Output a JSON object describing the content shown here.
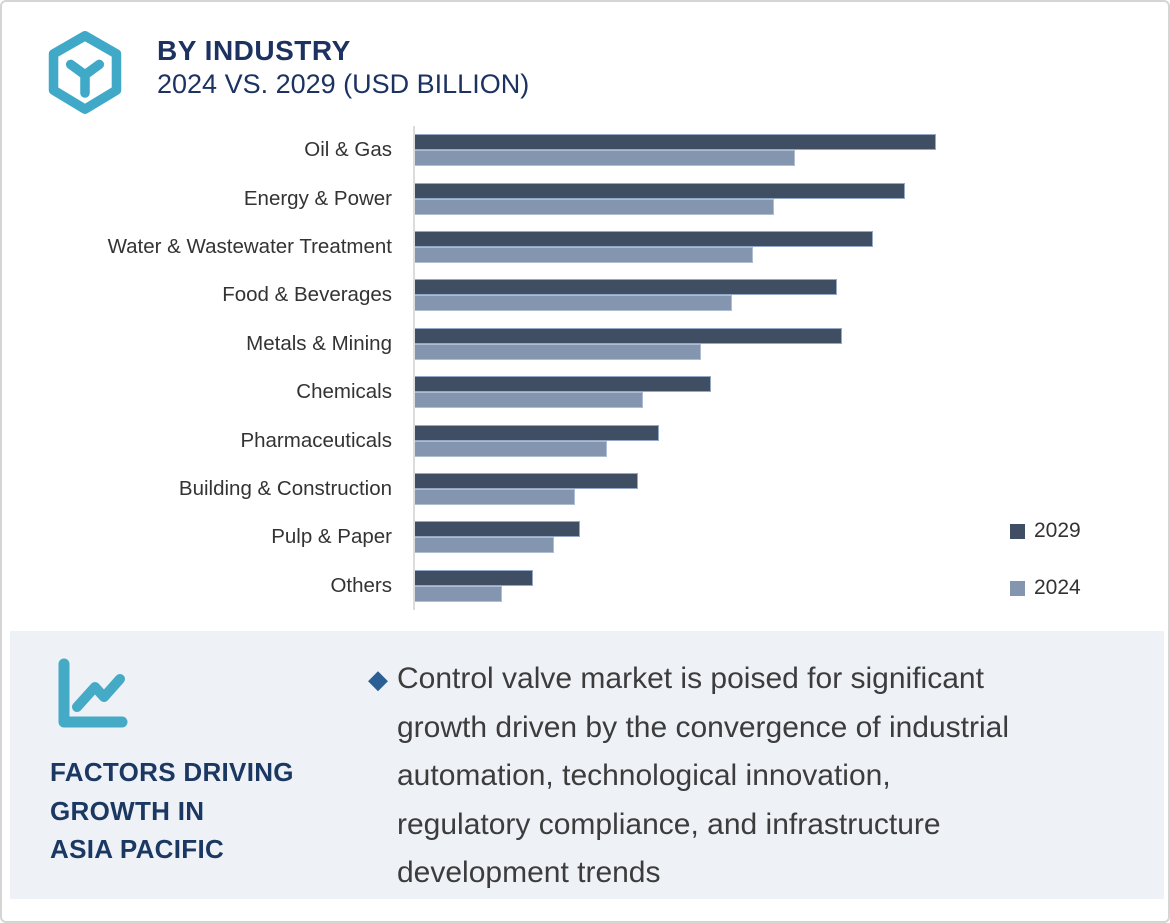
{
  "header": {
    "title": "BY INDUSTRY",
    "subtitle": "2024 VS. 2029 (USD BILLION)",
    "logo_icon": "hexagon-y-logo",
    "logo_color": "#3fa9c7",
    "title_color": "#1c3261"
  },
  "chart_data": {
    "type": "bar",
    "orientation": "horizontal",
    "title": "BY INDUSTRY 2024 VS. 2029 (USD BILLION)",
    "units": "USD Billion",
    "value_axis_labels_shown": false,
    "values_are_relative_estimates_max_100": true,
    "grid": false,
    "legend_position": "right",
    "categories": [
      "Oil & Gas",
      "Energy & Power",
      "Water & Wastewater Treatment",
      "Food & Beverages",
      "Metals & Mining",
      "Chemicals",
      "Pharmaceuticals",
      "Building & Construction",
      "Pulp & Paper",
      "Others"
    ],
    "series": [
      {
        "name": "2029",
        "color": "#3f4e63",
        "values": [
          100,
          94,
          88,
          81,
          82,
          57,
          47,
          43,
          32,
          23
        ]
      },
      {
        "name": "2024",
        "color": "#8496af",
        "values": [
          73,
          69,
          65,
          61,
          55,
          44,
          37,
          31,
          27,
          17
        ]
      }
    ]
  },
  "factors_panel": {
    "icon": "trend-chart-icon",
    "icon_color": "#45aac6",
    "background_color": "#eef1f6",
    "heading_lines": [
      "FACTORS DRIVING",
      "GROWTH IN",
      "ASIA PACIFIC"
    ],
    "bullet": {
      "marker": "◆",
      "marker_color": "#2b5f93",
      "lines": [
        "Control valve market is poised for significant",
        "growth driven by the convergence of industrial",
        "automation, technological innovation,",
        "regulatory compliance, and infrastructure",
        "development trends"
      ]
    }
  }
}
